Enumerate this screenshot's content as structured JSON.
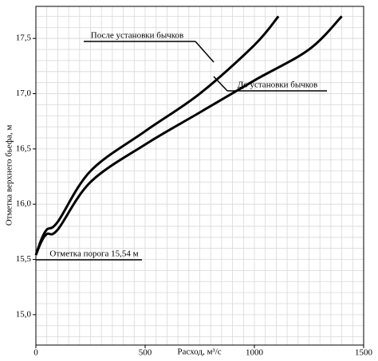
{
  "chart_data": {
    "type": "line",
    "xlabel": "Расход, м³/с",
    "ylabel": "Отметка верхнего бьефа, м",
    "xlim": [
      0,
      1500
    ],
    "ylim": [
      14.725,
      17.79
    ],
    "xticks": [
      0,
      500,
      1000,
      1500
    ],
    "yticks": [
      {
        "value": 15,
        "label": "15,0"
      },
      {
        "value": 15.5,
        "label": "15,5"
      },
      {
        "value": 16,
        "label": "16,0"
      },
      {
        "value": 16.5,
        "label": "16,5"
      },
      {
        "value": 17,
        "label": "17,0"
      },
      {
        "value": 17.5,
        "label": "17,5"
      }
    ],
    "grid": true,
    "grid_step": {
      "x": 50,
      "y": 0.1
    },
    "series": [
      {
        "name": "После установки бычков",
        "color": "#000000",
        "x": [
          0,
          25,
          50,
          100,
          250,
          500,
          750,
          1000,
          1110
        ],
        "values": [
          15.54,
          15.68,
          15.77,
          15.84,
          16.3,
          16.66,
          17.0,
          17.44,
          17.7
        ]
      },
      {
        "name": "До установки бычков",
        "color": "#000000",
        "x": [
          0,
          25,
          50,
          100,
          250,
          500,
          750,
          1000,
          1250,
          1400
        ],
        "values": [
          15.54,
          15.66,
          15.73,
          15.77,
          16.2,
          16.54,
          16.83,
          17.12,
          17.4,
          17.7
        ]
      }
    ],
    "annotations": [
      "Отметка порога 15,54 м"
    ]
  }
}
